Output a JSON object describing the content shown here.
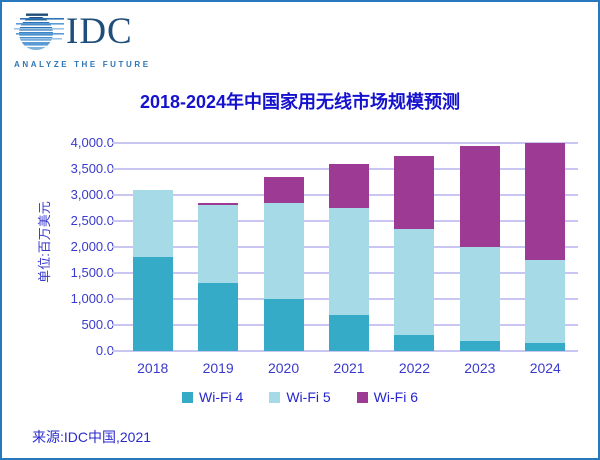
{
  "page": {
    "border_color": "#2878BE",
    "background": "#FFFFFF"
  },
  "logo": {
    "text": "IDC",
    "tagline": "ANALYZE THE FUTURE",
    "wordmark_color": "#1E4E79",
    "tagline_color": "#2E75B6",
    "globe_stripe_colors": [
      "#1F4E79",
      "#2E75B6",
      "#3C87C8",
      "#5B9BD5",
      "#2E75B6",
      "#4A90CE",
      "#7FB3DC",
      "#9DC3E6"
    ]
  },
  "title": {
    "text": "2018-2024年中国家用无线市场规模预测",
    "color": "#1512CE"
  },
  "chart_data": {
    "type": "bar",
    "stacked": true,
    "title": "2018-2024年中国家用无线市场规模预测",
    "categories": [
      "2018",
      "2019",
      "2020",
      "2021",
      "2022",
      "2023",
      "2024"
    ],
    "series": [
      {
        "name": "Wi-Fi 4",
        "color": "#35ABC7",
        "values": [
          1800,
          1300,
          1000,
          700,
          300,
          200,
          150
        ]
      },
      {
        "name": "Wi-Fi 5",
        "color": "#A6DAE7",
        "values": [
          1300,
          1500,
          1850,
          2050,
          2050,
          1800,
          1600
        ]
      },
      {
        "name": "Wi-Fi 6",
        "color": "#9C3A94",
        "values": [
          0,
          50,
          500,
          850,
          1400,
          1950,
          2250
        ]
      }
    ],
    "xlabel": "",
    "ylabel": "单位:百万美元",
    "ylim": [
      0,
      4000
    ],
    "ytick_step": 500,
    "ytick_labels": [
      "0.0",
      "500.0",
      "1,000.0",
      "1,500.0",
      "2,000.0",
      "2,500.0",
      "3,000.0",
      "3,500.0",
      "4,000.0"
    ],
    "grid": true,
    "gridline_color": "#C9C7F2",
    "axis_text_color": "#3A3ACD",
    "legend_text_color": "#2626CC",
    "legend_position": "bottom"
  },
  "footer": {
    "source": "来源:IDC中国,2021",
    "color": "#2B2BCB"
  }
}
